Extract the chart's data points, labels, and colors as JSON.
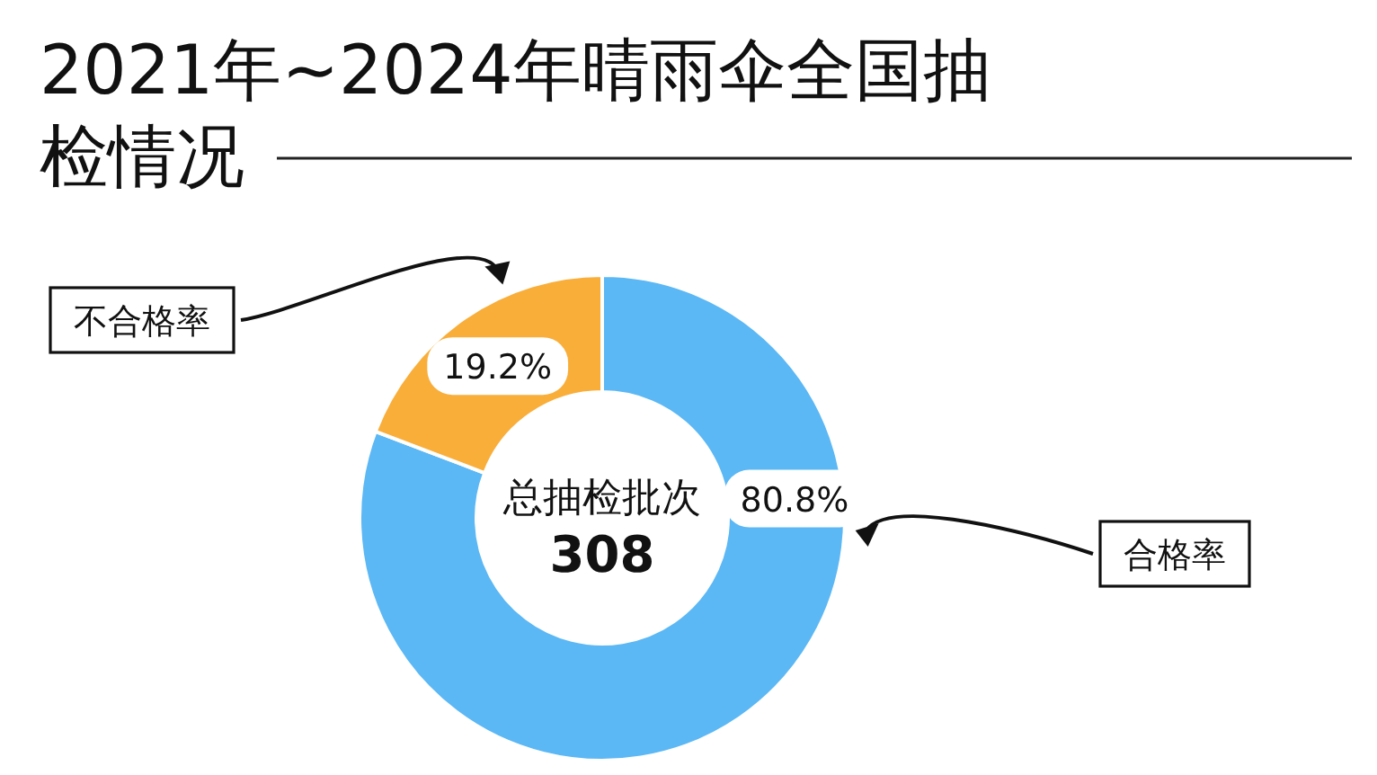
{
  "chart_data": {
    "type": "donut",
    "title": "2021年~2024年晴雨伞全国抽检情况",
    "categories": [
      "合格率",
      "不合格率"
    ],
    "values": [
      80.8,
      19.2
    ],
    "colors": [
      "#5bb8f5",
      "#f9ae3a"
    ],
    "value_labels": [
      "80.8%",
      "19.2%"
    ],
    "annotations": [
      "总抽检批次",
      "308"
    ]
  }
}
